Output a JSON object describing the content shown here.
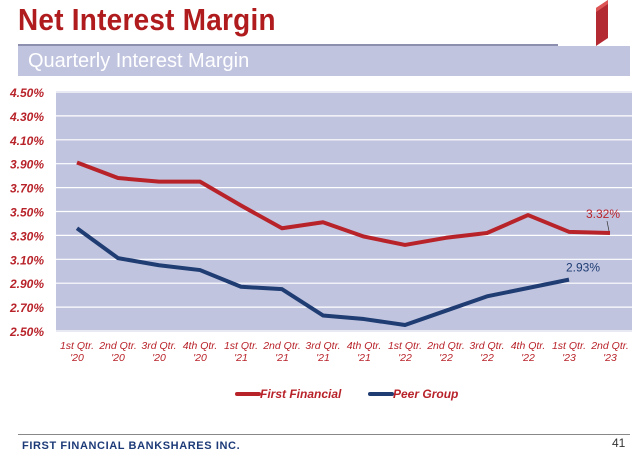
{
  "header": {
    "title": "Net Interest Margin",
    "subtitle": "Quarterly Interest Margin"
  },
  "footer": {
    "company": "FIRST FINANCIAL BANKSHARES INC.",
    "page_number": "41"
  },
  "colors": {
    "first_financial": "#b8232a",
    "peer_group": "#1f3c73",
    "plot_bg": "#c0c4df",
    "title": "#b01c1e"
  },
  "chart_data": {
    "type": "line",
    "categories": [
      [
        "1st Qtr.",
        "'20"
      ],
      [
        "2nd Qtr.",
        "'20"
      ],
      [
        "3rd Qtr.",
        "'20"
      ],
      [
        "4th Qtr.",
        "'20"
      ],
      [
        "1st Qtr.",
        "'21"
      ],
      [
        "2nd Qtr.",
        "'21"
      ],
      [
        "3rd Qtr.",
        "'21"
      ],
      [
        "4th Qtr.",
        "'21"
      ],
      [
        "1st Qtr.",
        "'22"
      ],
      [
        "2nd Qtr.",
        "'22"
      ],
      [
        "3rd Qtr.",
        "'22"
      ],
      [
        "4th Qtr.",
        "'22"
      ],
      [
        "1st Qtr.",
        "'23"
      ],
      [
        "2nd Qtr.",
        "'23"
      ]
    ],
    "yticks": [
      "4.50%",
      "4.30%",
      "4.10%",
      "3.90%",
      "3.70%",
      "3.50%",
      "3.30%",
      "3.10%",
      "2.90%",
      "2.70%",
      "2.50%"
    ],
    "ylim": [
      2.5,
      4.5
    ],
    "grid": true,
    "legend_position": "bottom",
    "series": [
      {
        "name": "First Financial",
        "values": [
          3.91,
          3.78,
          3.75,
          3.75,
          3.55,
          3.36,
          3.41,
          3.29,
          3.22,
          3.28,
          3.32,
          3.47,
          3.33,
          3.32
        ],
        "data_label": "3.32%"
      },
      {
        "name": "Peer Group",
        "values": [
          3.36,
          3.11,
          3.05,
          3.01,
          2.87,
          2.85,
          2.63,
          2.6,
          2.55,
          2.67,
          2.79,
          2.86,
          2.93,
          null
        ],
        "data_label": "2.93%"
      }
    ]
  }
}
